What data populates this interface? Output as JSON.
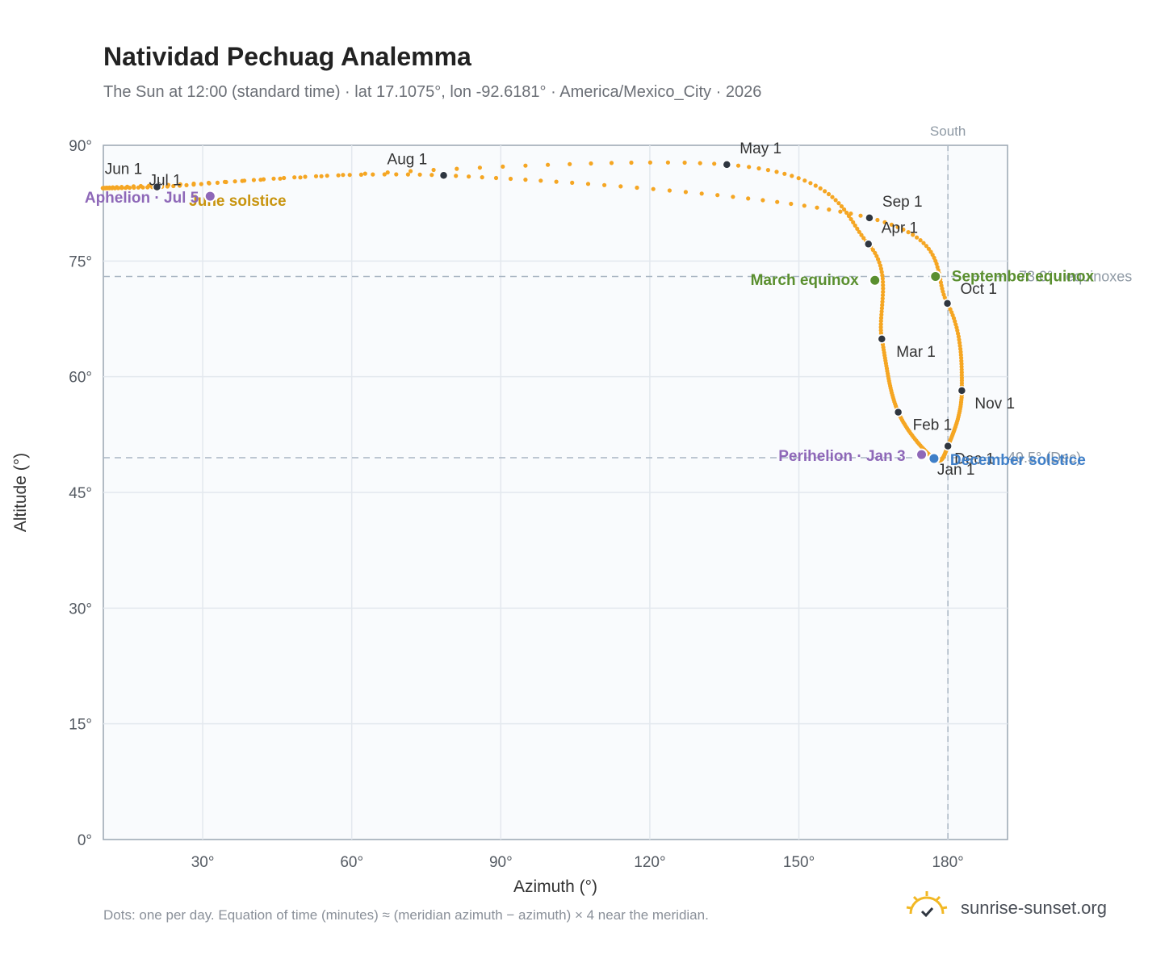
{
  "header": {
    "title": "Natividad Pechuag Analemma",
    "subtitle": "The Sun at 12:00 (standard time) · lat 17.1075°, lon -92.6181° · America/Mexico_City · 2026"
  },
  "footer": {
    "note": "Dots: one per day. Equation of time (minutes) ≈ (meridian azimuth − azimuth) × 4 near the meridian.",
    "brand": "sunrise-sunset.org"
  },
  "colors": {
    "path": "#f5a623",
    "month_dot": "#2f3640",
    "equinox": "#5a8f2f",
    "solstice_june": "#c8940e",
    "solstice_december": "#3f7fc8",
    "apsis": "#8e68b8",
    "reference": "#a9b6c3",
    "plot_bg": "#f9fbfd"
  },
  "chart_data": {
    "type": "scatter",
    "xlabel": "Azimuth (°)",
    "ylabel": "Altitude (°)",
    "xlim": [
      10,
      192
    ],
    "ylim": [
      0,
      90
    ],
    "x_ticks": [
      "30°",
      "60°",
      "90°",
      "120°",
      "150°",
      "180°"
    ],
    "y_ticks": [
      "0°",
      "15°",
      "30°",
      "45°",
      "60°",
      "75°",
      "90°"
    ],
    "grid": true,
    "meridian": {
      "azimuth": 180,
      "label": "South"
    },
    "reference_lines": [
      {
        "altitude": 73.0,
        "label": "73.0° · equinoxes"
      },
      {
        "altitude": 49.5,
        "label": "49.5° (Dec)"
      }
    ],
    "months": [
      {
        "label": "Jan 1",
        "azimuth": 177.2,
        "altitude": 49.4
      },
      {
        "label": "Feb 1",
        "azimuth": 170.0,
        "altitude": 55.4
      },
      {
        "label": "Mar 1",
        "azimuth": 166.7,
        "altitude": 64.9
      },
      {
        "label": "Apr 1",
        "azimuth": 164.0,
        "altitude": 77.2
      },
      {
        "label": "May 1",
        "azimuth": 135.5,
        "altitude": 87.5
      },
      {
        "label": "Jun 1",
        "azimuth": 21.0,
        "altitude": 84.8
      },
      {
        "label": "Jul 1",
        "azimuth": 20.8,
        "altitude": 84.6
      },
      {
        "label": "Aug 1",
        "azimuth": 78.5,
        "altitude": 86.1
      },
      {
        "label": "Sep 1",
        "azimuth": 164.2,
        "altitude": 80.6
      },
      {
        "label": "Oct 1",
        "azimuth": 179.9,
        "altitude": 69.5
      },
      {
        "label": "Nov 1",
        "azimuth": 182.8,
        "altitude": 58.2
      },
      {
        "label": "Dec 1",
        "azimuth": 180.0,
        "altitude": 51.0
      }
    ],
    "events": [
      {
        "label": "March equinox",
        "azimuth": 165.3,
        "altitude": 72.5,
        "kind": "equinox"
      },
      {
        "label": "September equinox",
        "azimuth": 177.5,
        "altitude": 73.0,
        "kind": "equinox"
      },
      {
        "label": "June solstice",
        "azimuth": 31.8,
        "altitude": 83.4,
        "kind": "solstice_june"
      },
      {
        "label": "December solstice",
        "azimuth": 177.2,
        "altitude": 49.4,
        "kind": "solstice_december"
      },
      {
        "label": "Aphelion · Jul 5",
        "azimuth": 31.5,
        "altitude": 83.4,
        "kind": "apsis"
      },
      {
        "label": "Perihelion · Jan 3",
        "azimuth": 174.7,
        "altitude": 49.9,
        "kind": "apsis"
      }
    ]
  }
}
